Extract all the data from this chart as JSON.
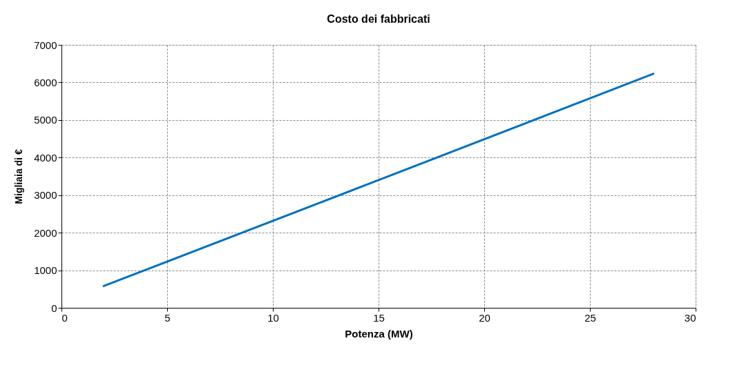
{
  "chart_data": {
    "type": "line",
    "title": "Costo dei fabbricati",
    "xlabel": "Potenza (MW)",
    "ylabel": "Migliaia di €",
    "x": [
      2,
      15,
      28
    ],
    "series": [
      {
        "color": "#0070c0",
        "values": [
          580,
          3400,
          6230
        ]
      }
    ],
    "xlim": [
      0,
      30
    ],
    "xticks": [
      0,
      5,
      10,
      15,
      20,
      25,
      30
    ],
    "ylim": [
      0,
      7000
    ],
    "yticks": [
      0,
      1000,
      2000,
      3000,
      4000,
      5000,
      6000,
      7000
    ],
    "grid": true,
    "marker": "none",
    "line_style": "solid"
  }
}
